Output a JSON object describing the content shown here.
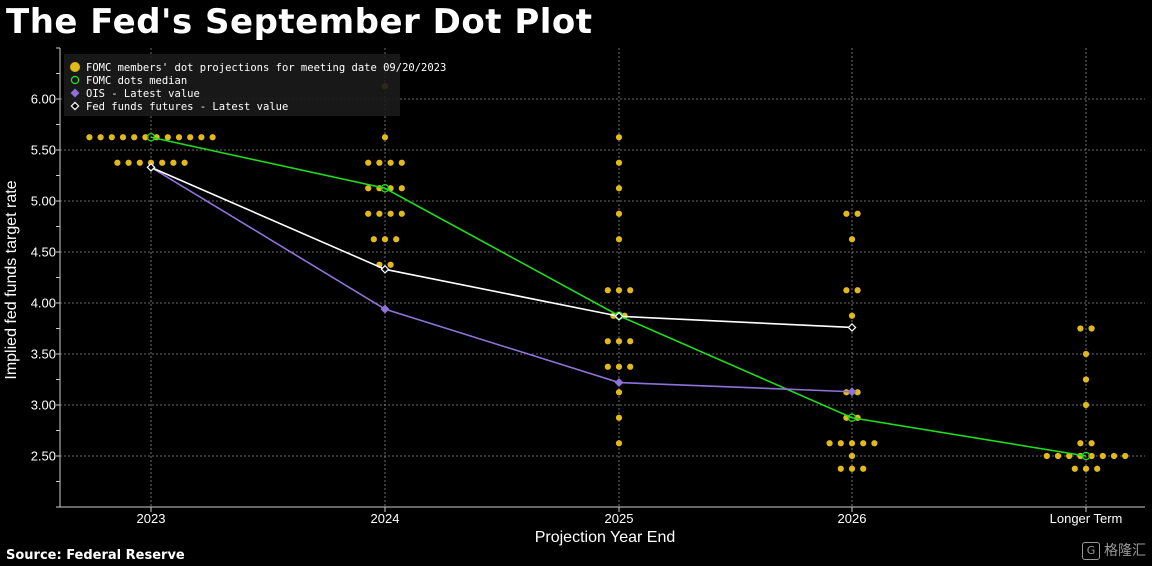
{
  "title": "The Fed's September Dot Plot",
  "source": "Source: Federal Reserve",
  "watermark": "格隆汇",
  "colors": {
    "background": "#000000",
    "dots": "#e2b91a",
    "median": "#1edc1e",
    "ois": "#8e72d8",
    "futures": "#ffffff",
    "grid": "#8a8a8a"
  },
  "chart_data": {
    "type": "scatter",
    "title": "The Fed's September Dot Plot",
    "xlabel": "Projection Year End",
    "ylabel": "Implied fed funds target rate",
    "categories": [
      "2023",
      "2024",
      "2025",
      "2026",
      "Longer Term"
    ],
    "ylim": [
      2.0,
      6.5
    ],
    "yticks": [
      "2.50",
      "3.00",
      "3.50",
      "4.00",
      "4.50",
      "5.00",
      "5.50",
      "6.00"
    ],
    "grid": true,
    "legend_position": "top-left",
    "legend": [
      {
        "label": "FOMC members' dot projections for meeting date 09/20/2023",
        "marker": "dot"
      },
      {
        "label": "FOMC dots median",
        "marker": "circle"
      },
      {
        "label": "OIS - Latest value",
        "marker": "diamond"
      },
      {
        "label": "Fed funds futures - Latest value",
        "marker": "diamond"
      }
    ],
    "dots": [
      {
        "category": "2023",
        "levels": [
          {
            "rate": 5.625,
            "count": 12
          },
          {
            "rate": 5.375,
            "count": 7
          }
        ]
      },
      {
        "category": "2024",
        "levels": [
          {
            "rate": 6.125,
            "count": 1
          },
          {
            "rate": 5.625,
            "count": 1
          },
          {
            "rate": 5.375,
            "count": 4
          },
          {
            "rate": 5.125,
            "count": 4
          },
          {
            "rate": 4.875,
            "count": 4
          },
          {
            "rate": 4.625,
            "count": 3
          },
          {
            "rate": 4.375,
            "count": 2
          }
        ]
      },
      {
        "category": "2025",
        "levels": [
          {
            "rate": 5.625,
            "count": 1
          },
          {
            "rate": 5.375,
            "count": 1
          },
          {
            "rate": 5.125,
            "count": 1
          },
          {
            "rate": 4.875,
            "count": 1
          },
          {
            "rate": 4.625,
            "count": 1
          },
          {
            "rate": 4.125,
            "count": 3
          },
          {
            "rate": 3.875,
            "count": 2
          },
          {
            "rate": 3.625,
            "count": 3
          },
          {
            "rate": 3.375,
            "count": 3
          },
          {
            "rate": 3.125,
            "count": 1
          },
          {
            "rate": 2.875,
            "count": 1
          },
          {
            "rate": 2.625,
            "count": 1
          }
        ]
      },
      {
        "category": "2026",
        "levels": [
          {
            "rate": 4.875,
            "count": 2
          },
          {
            "rate": 4.625,
            "count": 1
          },
          {
            "rate": 4.125,
            "count": 2
          },
          {
            "rate": 3.875,
            "count": 1
          },
          {
            "rate": 3.125,
            "count": 2
          },
          {
            "rate": 2.875,
            "count": 2
          },
          {
            "rate": 2.625,
            "count": 5
          },
          {
            "rate": 2.5,
            "count": 1
          },
          {
            "rate": 2.375,
            "count": 3
          }
        ]
      },
      {
        "category": "Longer Term",
        "levels": [
          {
            "rate": 3.75,
            "count": 2
          },
          {
            "rate": 3.5,
            "count": 1
          },
          {
            "rate": 3.25,
            "count": 1
          },
          {
            "rate": 3.0,
            "count": 1
          },
          {
            "rate": 2.625,
            "count": 2
          },
          {
            "rate": 2.5,
            "count": 8
          },
          {
            "rate": 2.375,
            "count": 3
          }
        ]
      }
    ],
    "series": [
      {
        "name": "FOMC dots median",
        "values": [
          5.625,
          5.125,
          3.875,
          2.875,
          2.5
        ]
      },
      {
        "name": "OIS - Latest value",
        "values": [
          5.33,
          3.94,
          3.22,
          3.13,
          null
        ]
      },
      {
        "name": "Fed funds futures - Latest value",
        "values": [
          5.33,
          4.33,
          3.87,
          3.76,
          null
        ]
      }
    ]
  }
}
